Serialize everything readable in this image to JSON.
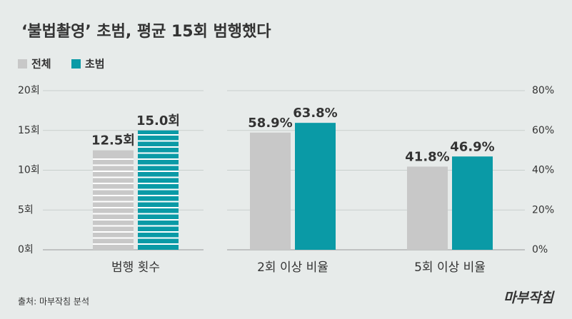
{
  "title": "‘불법촬영’ 초범, 평균 15회 범행했다",
  "source": "출처: 마부작침 분석",
  "logo": "마부작침",
  "chart_data": [
    {
      "type": "bar",
      "categories": [
        "범행 횟수"
      ],
      "series": [
        {
          "name": "전체",
          "color": "#c8c8c8",
          "values": [
            12.5
          ],
          "value_labels": [
            "12.5회"
          ]
        },
        {
          "name": "초범",
          "color": "#0a9aa6",
          "values": [
            15.0
          ],
          "value_labels": [
            "15.0회"
          ]
        }
      ],
      "ylim": [
        0,
        20
      ],
      "yticks": [
        {
          "value": 0,
          "label": "0회"
        },
        {
          "value": 5,
          "label": "5회"
        },
        {
          "value": 10,
          "label": "10회"
        },
        {
          "value": 15,
          "label": "15회"
        },
        {
          "value": 20,
          "label": "20회"
        }
      ],
      "grid": true
    },
    {
      "type": "bar",
      "categories": [
        "2회 이상 비율",
        "5회 이상 비율"
      ],
      "series": [
        {
          "color": "#c8c8c8",
          "values": [
            58.9,
            41.8
          ],
          "value_labels": [
            "58.9%",
            "41.8%"
          ]
        },
        {
          "color": "#0a9aa6",
          "values": [
            63.8,
            46.9
          ],
          "value_labels": [
            "63.8%",
            "46.9%"
          ]
        }
      ],
      "ylim": [
        0,
        80
      ],
      "yticks": [
        {
          "value": 0,
          "label": "0%"
        },
        {
          "value": 20,
          "label": "20%"
        },
        {
          "value": 40,
          "label": "40%"
        },
        {
          "value": 60,
          "label": "60%"
        },
        {
          "value": 80,
          "label": "80%"
        }
      ],
      "grid": true
    }
  ]
}
